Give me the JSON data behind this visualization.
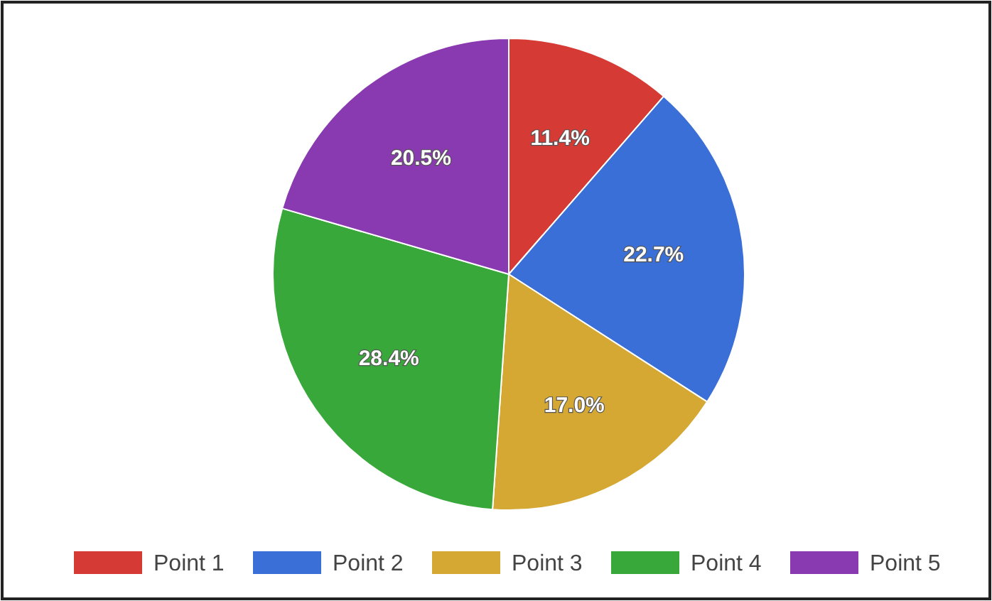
{
  "chart_data": {
    "type": "pie",
    "categories": [
      "Point 1",
      "Point 2",
      "Point 3",
      "Point 4",
      "Point 5"
    ],
    "values": [
      11.4,
      22.7,
      17.0,
      28.4,
      20.5
    ],
    "value_labels": [
      "11.4%",
      "22.7%",
      "17.0%",
      "28.4%",
      "20.5%"
    ],
    "colors": [
      "#d63a34",
      "#3a6fd8",
      "#d4a833",
      "#38a83a",
      "#8a3ab0"
    ],
    "legend": "bottom"
  }
}
